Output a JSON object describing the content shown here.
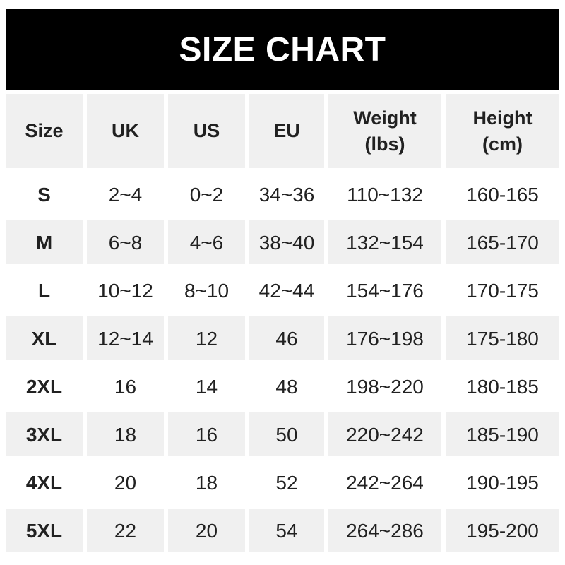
{
  "title": "SIZE CHART",
  "colors": {
    "banner_bg": "#000000",
    "banner_text": "#ffffff",
    "stripe_bg": "#f0f0f0",
    "row_bg": "#ffffff",
    "text": "#212121"
  },
  "chart_data": {
    "type": "table",
    "title": "SIZE CHART",
    "columns": [
      "Size",
      "UK",
      "US",
      "EU",
      "Weight (lbs)",
      "Height (cm)"
    ],
    "columns_display": [
      "Size",
      "UK",
      "US",
      "EU",
      "Weight\n(lbs)",
      "Height\n(cm)"
    ],
    "rows": [
      [
        "S",
        "2~4",
        "0~2",
        "34~36",
        "110~132",
        "160-165"
      ],
      [
        "M",
        "6~8",
        "4~6",
        "38~40",
        "132~154",
        "165-170"
      ],
      [
        "L",
        "10~12",
        "8~10",
        "42~44",
        "154~176",
        "170-175"
      ],
      [
        "XL",
        "12~14",
        "12",
        "46",
        "176~198",
        "175-180"
      ],
      [
        "2XL",
        "16",
        "14",
        "48",
        "198~220",
        "180-185"
      ],
      [
        "3XL",
        "18",
        "16",
        "50",
        "220~242",
        "185-190"
      ],
      [
        "4XL",
        "20",
        "18",
        "52",
        "242~264",
        "190-195"
      ],
      [
        "5XL",
        "22",
        "20",
        "54",
        "264~286",
        "195-200"
      ]
    ],
    "layout": {
      "stripe_rows": [
        "M",
        "XL",
        "3XL",
        "5XL"
      ],
      "header_background": "gray",
      "grid_lines": "white-gaps"
    }
  }
}
